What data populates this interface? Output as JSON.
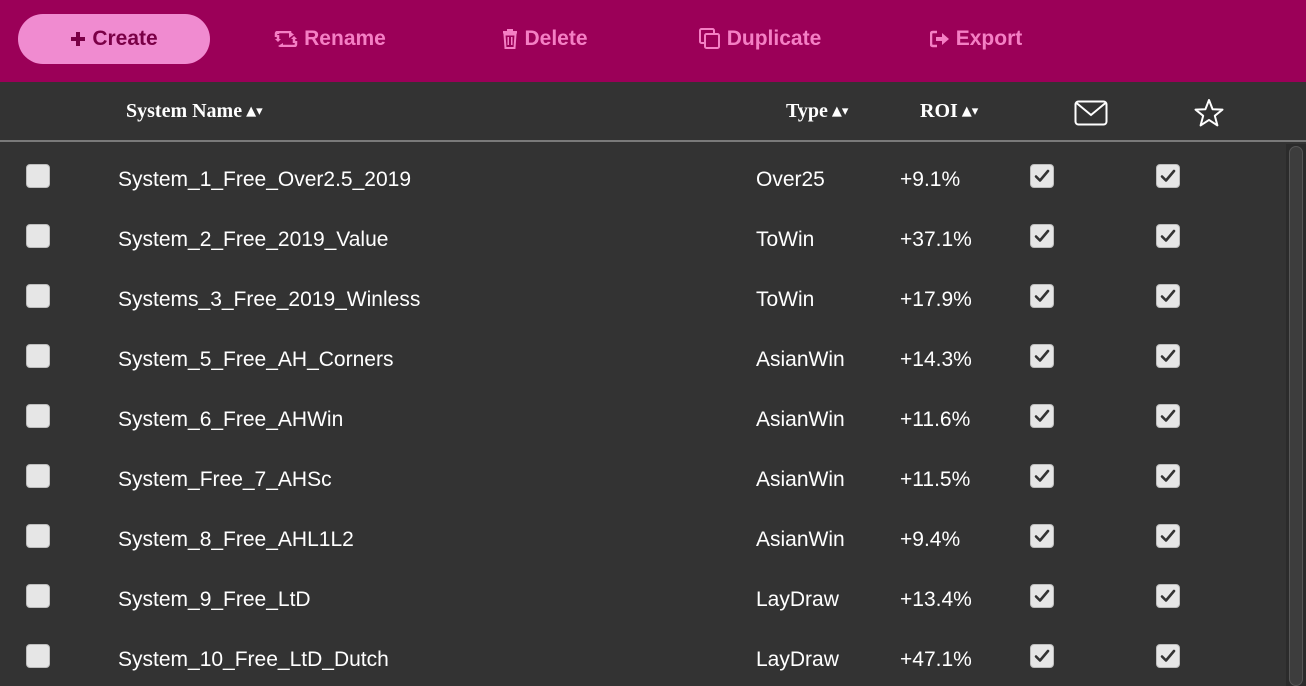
{
  "toolbar": {
    "create": "Create",
    "rename": "Rename",
    "delete": "Delete",
    "duplicate": "Duplicate",
    "export": "Export"
  },
  "columns": {
    "name": "System Name",
    "type": "Type",
    "roi": "ROI",
    "sort_indicator": "▲▾"
  },
  "colors": {
    "toolbar_bg": "#9b0058",
    "toolbar_text": "#f47fc4",
    "primary_button": "#f08bd0",
    "table_bg": "#333333"
  },
  "rows": [
    {
      "name": "System_1_Free_Over2.5_2019",
      "type": "Over25",
      "roi": "+9.1%",
      "selected": false,
      "email": true,
      "favorite": true
    },
    {
      "name": "System_2_Free_2019_Value",
      "type": "ToWin",
      "roi": "+37.1%",
      "selected": false,
      "email": true,
      "favorite": true
    },
    {
      "name": "Systems_3_Free_2019_Winless",
      "type": "ToWin",
      "roi": "+17.9%",
      "selected": false,
      "email": true,
      "favorite": true
    },
    {
      "name": "System_5_Free_AH_Corners",
      "type": "AsianWin",
      "roi": "+14.3%",
      "selected": false,
      "email": true,
      "favorite": true
    },
    {
      "name": "System_6_Free_AHWin",
      "type": "AsianWin",
      "roi": "+11.6%",
      "selected": false,
      "email": true,
      "favorite": true
    },
    {
      "name": "System_Free_7_AHSc",
      "type": "AsianWin",
      "roi": "+11.5%",
      "selected": false,
      "email": true,
      "favorite": true
    },
    {
      "name": "System_8_Free_AHL1L2",
      "type": "AsianWin",
      "roi": "+9.4%",
      "selected": false,
      "email": true,
      "favorite": true
    },
    {
      "name": "System_9_Free_LtD",
      "type": "LayDraw",
      "roi": "+13.4%",
      "selected": false,
      "email": true,
      "favorite": true
    },
    {
      "name": "System_10_Free_LtD_Dutch",
      "type": "LayDraw",
      "roi": "+47.1%",
      "selected": false,
      "email": true,
      "favorite": true
    }
  ]
}
